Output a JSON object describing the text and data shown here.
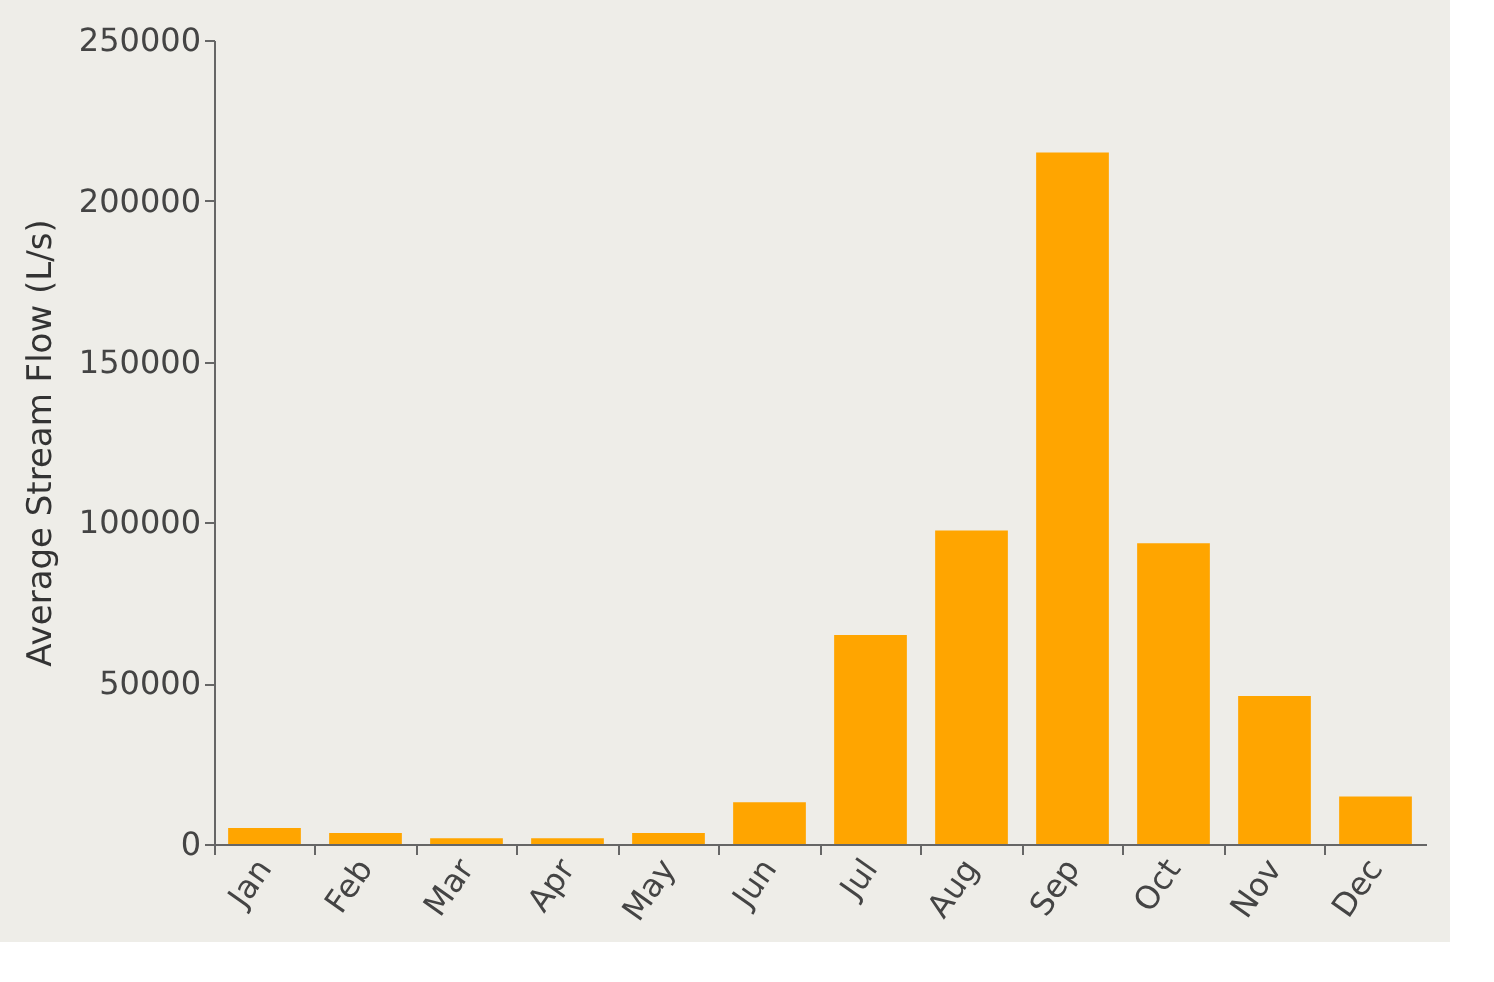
{
  "chart_data": {
    "type": "bar",
    "ylabel": "Average Stream Flow (L/s)",
    "categories": [
      "Jan",
      "Feb",
      "Mar",
      "Apr",
      "May",
      "Jun",
      "Jul",
      "Aug",
      "Sep",
      "Oct",
      "Nov",
      "Dec"
    ],
    "values": [
      5000,
      3400,
      1800,
      1800,
      3400,
      13000,
      65000,
      97500,
      215000,
      93500,
      46000,
      14800
    ],
    "color": "#ffa500",
    "ylim": [
      0,
      250000
    ],
    "yticks": [
      0,
      50000,
      100000,
      150000,
      200000,
      250000
    ],
    "grid": false
  }
}
